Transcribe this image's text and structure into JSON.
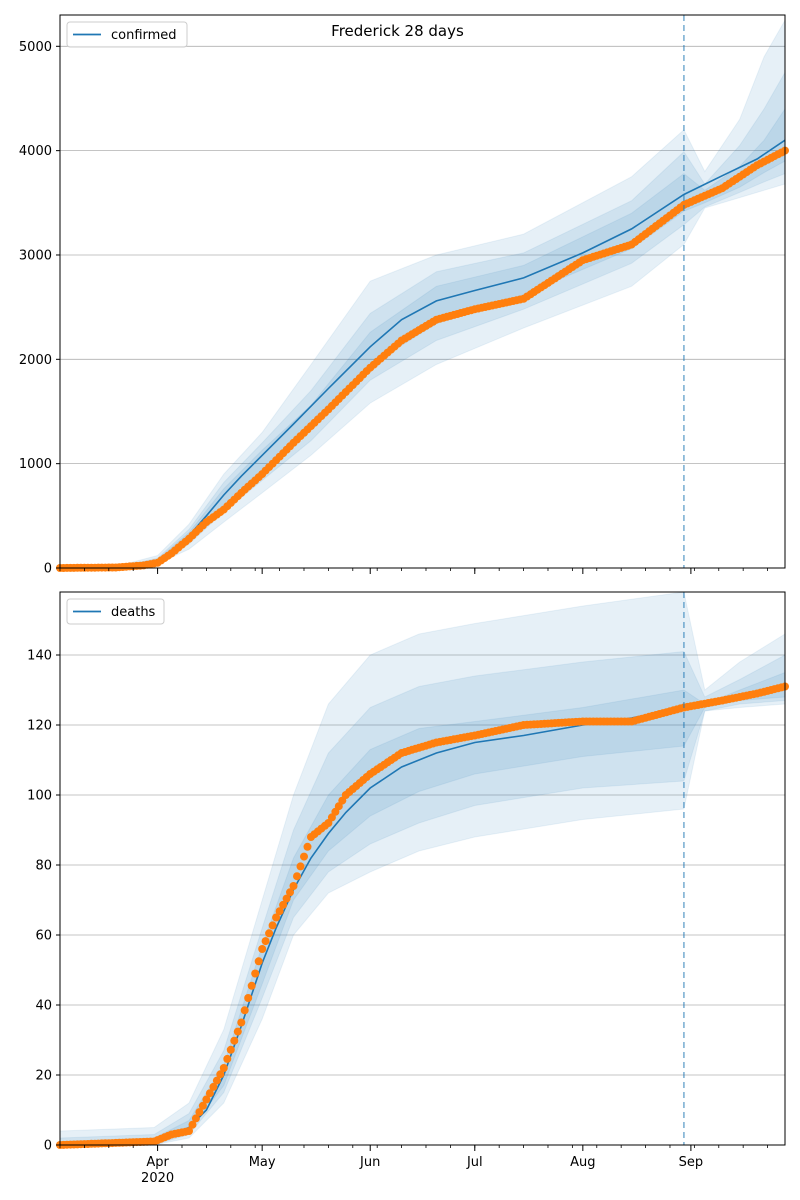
{
  "chart_data": [
    {
      "type": "line",
      "title": "Frederick 28 days",
      "xlabel": "",
      "ylabel": "",
      "x_range": [
        "2020-03-04",
        "2020-09-28"
      ],
      "ylim": [
        0,
        5300
      ],
      "yticks": [
        0,
        1000,
        2000,
        3000,
        4000,
        5000
      ],
      "xticks": [
        {
          "date": "2020-04-01",
          "label": "Apr",
          "sublabel": "2020"
        },
        {
          "date": "2020-05-01",
          "label": "May",
          "sublabel": ""
        },
        {
          "date": "2020-06-01",
          "label": "Jun",
          "sublabel": ""
        },
        {
          "date": "2020-07-01",
          "label": "Jul",
          "sublabel": ""
        },
        {
          "date": "2020-08-01",
          "label": "Aug",
          "sublabel": ""
        },
        {
          "date": "2020-09-01",
          "label": "Sep",
          "sublabel": ""
        }
      ],
      "grid": "horizontal",
      "legend": {
        "position": "top-left",
        "entries": [
          "confirmed"
        ]
      },
      "forecast_start": "2020-08-30",
      "colors": {
        "model": "#1f77b4",
        "observed": "#ff7f0e",
        "band": "#1f77b4"
      },
      "series": [
        {
          "name": "confirmed",
          "role": "model",
          "x": [
            "2020-03-04",
            "2020-03-20",
            "2020-03-28",
            "2020-04-01",
            "2020-04-05",
            "2020-04-10",
            "2020-04-15",
            "2020-04-20",
            "2020-04-25",
            "2020-05-01",
            "2020-05-10",
            "2020-05-20",
            "2020-06-01",
            "2020-06-10",
            "2020-06-20",
            "2020-07-01",
            "2020-07-15",
            "2020-08-01",
            "2020-08-15",
            "2020-08-30",
            "2020-09-10",
            "2020-09-20",
            "2020-09-28"
          ],
          "values": [
            0,
            5,
            30,
            70,
            160,
            310,
            500,
            700,
            880,
            1080,
            1380,
            1720,
            2120,
            2380,
            2560,
            2660,
            2780,
            3020,
            3250,
            3580,
            3760,
            3920,
            4100
          ]
        },
        {
          "name": "",
          "role": "observed",
          "x": [
            "2020-03-04",
            "2020-03-20",
            "2020-03-28",
            "2020-04-01",
            "2020-04-05",
            "2020-04-10",
            "2020-04-15",
            "2020-04-20",
            "2020-04-25",
            "2020-05-01",
            "2020-05-10",
            "2020-05-20",
            "2020-06-01",
            "2020-06-10",
            "2020-06-20",
            "2020-07-01",
            "2020-07-15",
            "2020-08-01",
            "2020-08-15",
            "2020-08-30",
            "2020-09-10",
            "2020-09-20",
            "2020-09-28"
          ],
          "values": [
            0,
            5,
            25,
            50,
            140,
            280,
            440,
            560,
            720,
            900,
            1200,
            1520,
            1920,
            2180,
            2380,
            2480,
            2580,
            2950,
            3100,
            3480,
            3640,
            3860,
            4000
          ]
        },
        {
          "name": "",
          "role": "band",
          "x": [
            "2020-03-04",
            "2020-03-20",
            "2020-04-01",
            "2020-04-10",
            "2020-04-20",
            "2020-05-01",
            "2020-05-15",
            "2020-06-01",
            "2020-06-20",
            "2020-07-15",
            "2020-08-15",
            "2020-08-30",
            "2020-09-05",
            "2020-09-15",
            "2020-09-22",
            "2020-09-28"
          ],
          "lower": [
            0,
            0,
            40,
            180,
            440,
            720,
            1080,
            1580,
            1950,
            2300,
            2700,
            3100,
            3450,
            3550,
            3620,
            3680
          ],
          "upper": [
            10,
            15,
            120,
            420,
            900,
            1300,
            1950,
            2750,
            3000,
            3200,
            3750,
            4200,
            3800,
            4300,
            4900,
            5250
          ]
        },
        {
          "name": "",
          "role": "band",
          "x": [
            "2020-03-04",
            "2020-03-20",
            "2020-04-01",
            "2020-04-10",
            "2020-04-20",
            "2020-05-01",
            "2020-05-15",
            "2020-06-01",
            "2020-06-20",
            "2020-07-15",
            "2020-08-15",
            "2020-08-30",
            "2020-09-05",
            "2020-09-15",
            "2020-09-22",
            "2020-09-28"
          ],
          "lower": [
            0,
            0,
            55,
            230,
            540,
            840,
            1220,
            1800,
            2180,
            2480,
            2920,
            3290,
            3460,
            3600,
            3700,
            3780
          ],
          "upper": [
            6,
            10,
            95,
            370,
            820,
            1200,
            1700,
            2440,
            2840,
            3020,
            3520,
            3990,
            3680,
            4050,
            4400,
            4750
          ]
        },
        {
          "name": "",
          "role": "band",
          "x": [
            "2020-03-04",
            "2020-03-20",
            "2020-04-01",
            "2020-04-10",
            "2020-04-20",
            "2020-05-01",
            "2020-05-15",
            "2020-06-01",
            "2020-06-20",
            "2020-07-15",
            "2020-08-15",
            "2020-08-30",
            "2020-09-05",
            "2020-09-15",
            "2020-09-22",
            "2020-09-28"
          ],
          "lower": [
            0,
            1,
            62,
            270,
            600,
            940,
            1340,
            1950,
            2340,
            2620,
            3060,
            3420,
            3500,
            3650,
            3790,
            3900
          ],
          "upper": [
            4,
            8,
            82,
            340,
            760,
            1130,
            1560,
            2260,
            2700,
            2900,
            3400,
            3780,
            3620,
            3850,
            4100,
            4400
          ]
        }
      ]
    },
    {
      "type": "line",
      "title": "",
      "xlabel": "",
      "ylabel": "",
      "x_range": [
        "2020-03-04",
        "2020-09-28"
      ],
      "ylim": [
        0,
        158
      ],
      "yticks": [
        0,
        20,
        40,
        60,
        80,
        100,
        120,
        140
      ],
      "xticks": [
        {
          "date": "2020-04-01",
          "label": "Apr",
          "sublabel": "2020"
        },
        {
          "date": "2020-05-01",
          "label": "May",
          "sublabel": ""
        },
        {
          "date": "2020-06-01",
          "label": "Jun",
          "sublabel": ""
        },
        {
          "date": "2020-07-01",
          "label": "Jul",
          "sublabel": ""
        },
        {
          "date": "2020-08-01",
          "label": "Aug",
          "sublabel": ""
        },
        {
          "date": "2020-09-01",
          "label": "Sep",
          "sublabel": ""
        }
      ],
      "grid": "horizontal",
      "legend": {
        "position": "top-left",
        "entries": [
          "deaths"
        ]
      },
      "forecast_start": "2020-08-30",
      "colors": {
        "model": "#1f77b4",
        "observed": "#ff7f0e",
        "band": "#1f77b4"
      },
      "series": [
        {
          "name": "deaths",
          "role": "model",
          "x": [
            "2020-03-04",
            "2020-03-31",
            "2020-04-05",
            "2020-04-10",
            "2020-04-15",
            "2020-04-20",
            "2020-04-25",
            "2020-05-01",
            "2020-05-05",
            "2020-05-10",
            "2020-05-15",
            "2020-05-20",
            "2020-05-25",
            "2020-06-01",
            "2020-06-10",
            "2020-06-20",
            "2020-07-01",
            "2020-07-15",
            "2020-08-01",
            "2020-08-15",
            "2020-08-30",
            "2020-09-10",
            "2020-09-20",
            "2020-09-28"
          ],
          "values": [
            0,
            1,
            3,
            5,
            10,
            20,
            34,
            52,
            62,
            73,
            82,
            89,
            95,
            102,
            108,
            112,
            115,
            117,
            120,
            122,
            125,
            127,
            129,
            131
          ]
        },
        {
          "name": "",
          "role": "observed",
          "x": [
            "2020-03-04",
            "2020-03-31",
            "2020-04-05",
            "2020-04-10",
            "2020-04-15",
            "2020-04-20",
            "2020-04-25",
            "2020-05-01",
            "2020-05-05",
            "2020-05-10",
            "2020-05-15",
            "2020-05-20",
            "2020-05-25",
            "2020-06-01",
            "2020-06-10",
            "2020-06-20",
            "2020-07-01",
            "2020-07-15",
            "2020-08-01",
            "2020-08-15",
            "2020-08-30",
            "2020-09-10",
            "2020-09-20",
            "2020-09-28"
          ],
          "values": [
            0,
            1,
            3,
            4,
            13,
            22,
            35,
            56,
            65,
            74,
            88,
            92,
            100,
            106,
            112,
            115,
            117,
            120,
            121,
            121,
            125,
            127,
            129,
            131
          ]
        },
        {
          "name": "",
          "role": "band",
          "x": [
            "2020-03-04",
            "2020-03-31",
            "2020-04-10",
            "2020-04-20",
            "2020-05-01",
            "2020-05-10",
            "2020-05-20",
            "2020-06-01",
            "2020-06-15",
            "2020-07-01",
            "2020-08-01",
            "2020-08-30",
            "2020-09-05",
            "2020-09-15",
            "2020-09-28"
          ],
          "lower": [
            0,
            0,
            2,
            12,
            36,
            60,
            72,
            78,
            84,
            88,
            93,
            96,
            124,
            125,
            126
          ],
          "upper": [
            4,
            5,
            12,
            33,
            70,
            100,
            126,
            140,
            146,
            149,
            154,
            158,
            130,
            138,
            146
          ]
        },
        {
          "name": "",
          "role": "band",
          "x": [
            "2020-03-04",
            "2020-03-31",
            "2020-04-10",
            "2020-04-20",
            "2020-05-01",
            "2020-05-10",
            "2020-05-20",
            "2020-06-01",
            "2020-06-15",
            "2020-07-01",
            "2020-08-01",
            "2020-08-30",
            "2020-09-05",
            "2020-09-15",
            "2020-09-28"
          ],
          "lower": [
            0,
            0,
            3,
            15,
            42,
            65,
            78,
            86,
            92,
            97,
            102,
            104,
            124,
            126,
            127
          ],
          "upper": [
            2,
            3,
            9,
            27,
            62,
            90,
            112,
            125,
            131,
            134,
            138,
            141,
            128,
            133,
            140
          ]
        },
        {
          "name": "",
          "role": "band",
          "x": [
            "2020-03-04",
            "2020-03-31",
            "2020-04-10",
            "2020-04-20",
            "2020-05-01",
            "2020-05-10",
            "2020-05-20",
            "2020-06-01",
            "2020-06-15",
            "2020-07-01",
            "2020-08-01",
            "2020-08-30",
            "2020-09-05",
            "2020-09-15",
            "2020-09-28"
          ],
          "lower": [
            0,
            0,
            4,
            17,
            46,
            70,
            84,
            94,
            101,
            106,
            111,
            114,
            125,
            127,
            128
          ],
          "upper": [
            1,
            2,
            7,
            23,
            57,
            82,
            100,
            113,
            119,
            121,
            125,
            130,
            126,
            130,
            135
          ]
        }
      ]
    }
  ]
}
